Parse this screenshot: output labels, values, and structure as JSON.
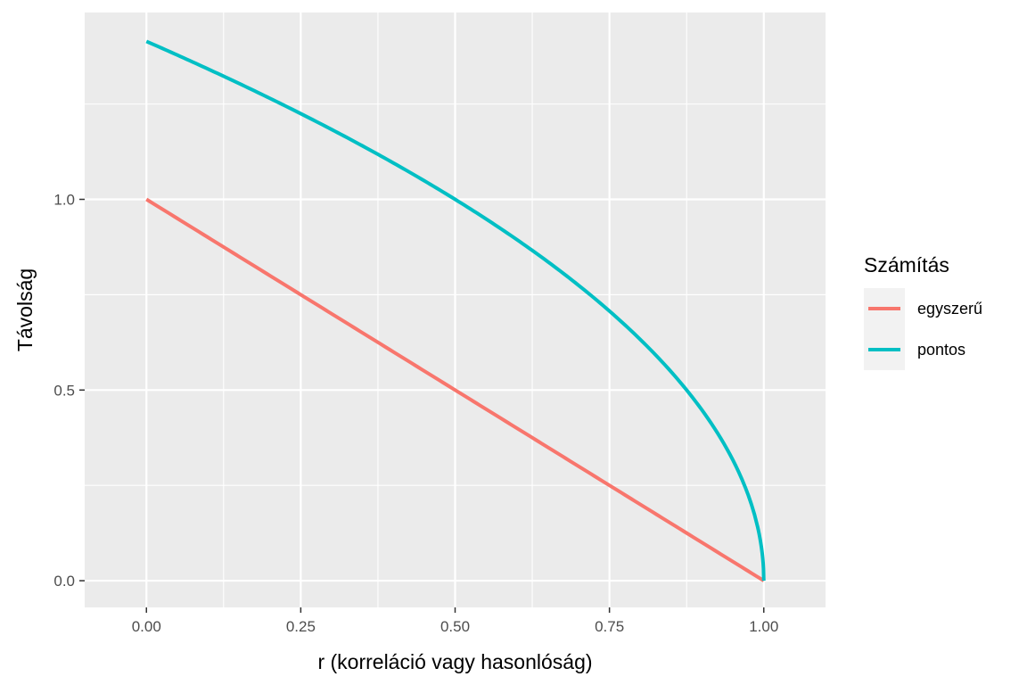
{
  "chart_data": {
    "type": "line",
    "xlabel": "r (korreláció vagy hasonlóság)",
    "ylabel": "Távolság",
    "xlim": [
      -0.1,
      1.1
    ],
    "ylim": [
      -0.07,
      1.49
    ],
    "x_ticks": [
      0,
      0.25,
      0.5,
      0.75,
      1
    ],
    "x_tick_labels": [
      "0.00",
      "0.25",
      "0.50",
      "0.75",
      "1.00"
    ],
    "y_ticks": [
      0,
      0.5,
      1
    ],
    "y_tick_labels": [
      "0.0",
      "0.5",
      "1.0"
    ],
    "grid": true,
    "legend": {
      "title": "Számítás",
      "position": "right"
    },
    "series": [
      {
        "name": "egyszerű",
        "color": "#F8766D",
        "formula": "1 - r",
        "x": [
          0,
          0.1,
          0.2,
          0.3,
          0.4,
          0.5,
          0.6,
          0.7,
          0.8,
          0.9,
          1.0
        ],
        "y": [
          1.0,
          0.9,
          0.8,
          0.7,
          0.6,
          0.5,
          0.4,
          0.3,
          0.2,
          0.1,
          0.0
        ]
      },
      {
        "name": "pontos",
        "color": "#00BFC4",
        "formula": "sqrt(2*(1 - r))",
        "x": [
          0,
          0.1,
          0.2,
          0.3,
          0.4,
          0.5,
          0.6,
          0.7,
          0.8,
          0.9,
          0.95,
          0.99,
          1.0
        ],
        "y": [
          1.414,
          1.342,
          1.265,
          1.183,
          1.095,
          1.0,
          0.894,
          0.775,
          0.632,
          0.447,
          0.316,
          0.141,
          0.0
        ]
      }
    ]
  }
}
